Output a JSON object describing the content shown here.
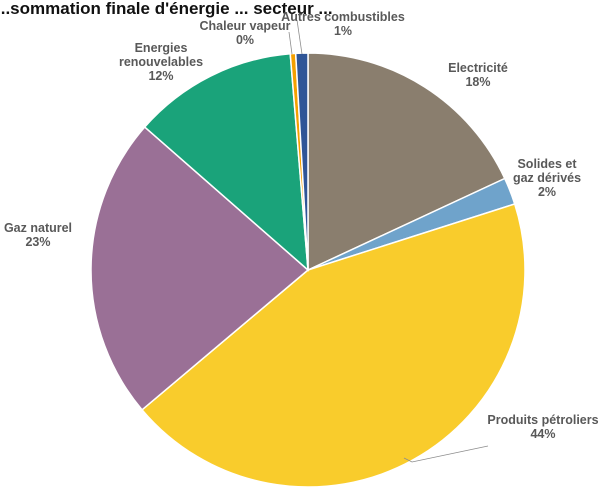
{
  "chart_data": {
    "type": "pie",
    "title": "...sommation finale d'énergie ... secteur ...",
    "slices": [
      {
        "name": "Electricité",
        "lines": [
          "Electricité"
        ],
        "value_label": "18%",
        "value": 18.0,
        "color": "#8a7e6e"
      },
      {
        "name": "Solides et gaz dérivés",
        "lines": [
          "Solides et",
          "gaz dérivés"
        ],
        "value_label": "2%",
        "value": 2.0,
        "color": "#6fa3cb"
      },
      {
        "name": "Produits pétroliers",
        "lines": [
          "Produits pétroliers"
        ],
        "value_label": "44%",
        "value": 43.6,
        "color": "#f9cc2c"
      },
      {
        "name": "Gaz naturel",
        "lines": [
          "Gaz naturel"
        ],
        "value_label": "23%",
        "value": 22.5,
        "color": "#9a7096"
      },
      {
        "name": "Energies renouvelables",
        "lines": [
          "Energies",
          "renouvelables"
        ],
        "value_label": "12%",
        "value": 12.2,
        "color": "#1aa37a"
      },
      {
        "name": "Chaleur vapeur",
        "lines": [
          "Chaleur vapeur"
        ],
        "value_label": "0%",
        "value": 0.4,
        "color": "#f4a000"
      },
      {
        "name": "Autres combustibles",
        "lines": [
          "Autres combustibles"
        ],
        "value_label": "1%",
        "value": 0.9,
        "color": "#2f5597"
      }
    ],
    "legend": "none"
  }
}
